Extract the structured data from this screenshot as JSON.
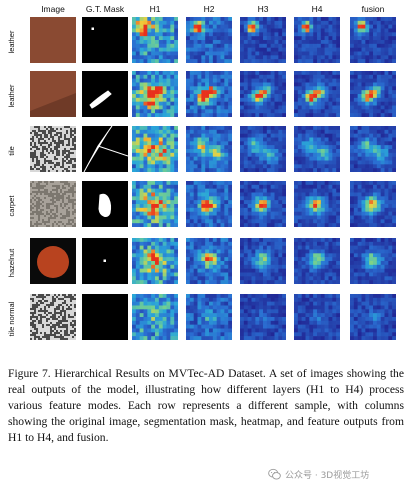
{
  "columns": [
    "Image",
    "G.T. Mask",
    "H1",
    "H2",
    "H3",
    "H4",
    "fusion"
  ],
  "rows": [
    "leather",
    "leather",
    "tile",
    "carpet",
    "hazelnut",
    "tile normal"
  ],
  "caption": "Figure 7.  Hierarchical Results on MVTec-AD Dataset.  A set of images showing the real outputs of the model, illustrating how different layers (H1 to H4) process various feature modes. Each row represents a different sample, with columns showing the original image, segmentation mask, heatmap, and feature outputs from H1 to H4, and fusion.",
  "watermark": "公众号 · 3D视觉工坊",
  "colors": {
    "heatmap_low": "#1f1a8a",
    "heatmap_mid": "#2aa7d8",
    "heatmap_high": "#f2d03a",
    "heatmap_peak": "#e8301c",
    "leather": "#8a4a32",
    "hazelnut_bg": "#0a0a0a",
    "hazelnut_nut": "#b8431f"
  }
}
